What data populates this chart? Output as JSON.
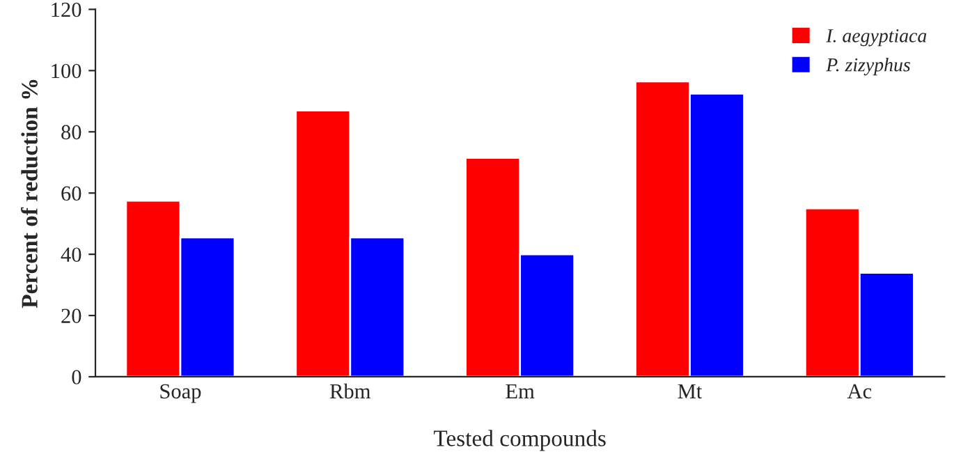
{
  "chart_data": {
    "type": "bar",
    "xlabel": "Tested compounds",
    "ylabel": "Percent of reduction %",
    "categories": [
      "Soap",
      "Rbm",
      "Em",
      "Mt",
      "Ac"
    ],
    "series": [
      {
        "name": "I. aegyptiaca",
        "color": "#ff0000",
        "values": [
          57.5,
          87,
          71.5,
          96.5,
          55
        ]
      },
      {
        "name": "P. zizyphus",
        "color": "#0000ff",
        "values": [
          45.5,
          45.5,
          40,
          92.5,
          34
        ]
      }
    ],
    "ylim": [
      0,
      120
    ],
    "yticks": [
      0,
      20,
      40,
      60,
      80,
      100,
      120
    ],
    "grid": false,
    "legend": "top right"
  }
}
